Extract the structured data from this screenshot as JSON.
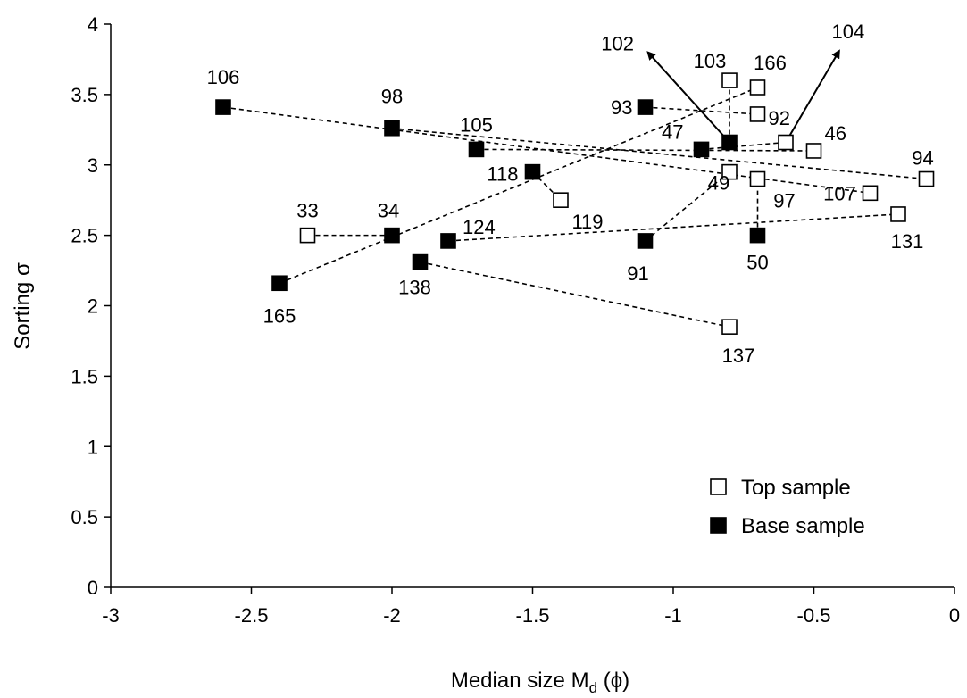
{
  "chart_data": {
    "type": "scatter",
    "xlabel": "Median size M",
    "xlabel_sub": "d",
    "xlabel_unit": "(ϕ)",
    "ylabel": "Sorting σ",
    "xlim": [
      -3,
      0
    ],
    "ylim": [
      0,
      4
    ],
    "xticks": [
      -3,
      -2.5,
      -2,
      -1.5,
      -1,
      -0.5,
      0
    ],
    "xtick_labels": [
      "-3",
      "-2.5",
      "-2",
      "-1.5",
      "-1",
      "-0.5",
      "0"
    ],
    "yticks": [
      0,
      0.5,
      1,
      1.5,
      2,
      2.5,
      3,
      3.5,
      4
    ],
    "ytick_labels": [
      "0",
      "0.5",
      "1",
      "1.5",
      "2",
      "2.5",
      "3",
      "3.5",
      "4"
    ],
    "grid": false,
    "legend_position": "bottom-right",
    "series": [
      {
        "name": "Top sample",
        "marker": "open-square",
        "points": [
          {
            "label": "33",
            "x": -2.3,
            "y": 2.5
          },
          {
            "label": "119",
            "x": -1.4,
            "y": 2.75
          },
          {
            "label": "103",
            "x": -0.8,
            "y": 3.6
          },
          {
            "label": "166",
            "x": -0.7,
            "y": 3.55
          },
          {
            "label": "92",
            "x": -0.7,
            "y": 3.36
          },
          {
            "label": "46",
            "x": -0.5,
            "y": 3.1
          },
          {
            "label": "104",
            "x": -0.6,
            "y": 3.16
          },
          {
            "label": "49",
            "x": -0.8,
            "y": 2.95
          },
          {
            "label": "97",
            "x": -0.7,
            "y": 2.9
          },
          {
            "label": "107",
            "x": -0.3,
            "y": 2.8
          },
          {
            "label": "94",
            "x": -0.1,
            "y": 2.9
          },
          {
            "label": "131",
            "x": -0.2,
            "y": 2.65
          },
          {
            "label": "137",
            "x": -0.8,
            "y": 1.85
          }
        ]
      },
      {
        "name": "Base sample",
        "marker": "filled-square",
        "points": [
          {
            "label": "106",
            "x": -2.6,
            "y": 3.41
          },
          {
            "label": "98",
            "x": -2.0,
            "y": 3.26
          },
          {
            "label": "105",
            "x": -1.7,
            "y": 3.11
          },
          {
            "label": "118",
            "x": -1.5,
            "y": 2.95
          },
          {
            "label": "34",
            "x": -2.0,
            "y": 2.5
          },
          {
            "label": "124",
            "x": -1.8,
            "y": 2.46
          },
          {
            "label": "165",
            "x": -2.4,
            "y": 2.16
          },
          {
            "label": "138",
            "x": -1.9,
            "y": 2.31
          },
          {
            "label": "93",
            "x": -1.1,
            "y": 3.41
          },
          {
            "label": "47",
            "x": -0.9,
            "y": 3.11
          },
          {
            "label": "102",
            "x": -0.8,
            "y": 3.16
          },
          {
            "label": "91",
            "x": -1.1,
            "y": 2.46
          },
          {
            "label": "50",
            "x": -0.7,
            "y": 2.5
          }
        ]
      }
    ],
    "connections": [
      [
        "106",
        "107"
      ],
      [
        "98",
        "94"
      ],
      [
        "105",
        "46"
      ],
      [
        "118",
        "119"
      ],
      [
        "33",
        "34"
      ],
      [
        "124",
        "131"
      ],
      [
        "165",
        "166"
      ],
      [
        "138",
        "137"
      ],
      [
        "93",
        "92"
      ],
      [
        "47",
        "104"
      ],
      [
        "102",
        "103"
      ],
      [
        "91",
        "49"
      ],
      [
        "50",
        "97"
      ]
    ],
    "arrows": [
      {
        "from": "102",
        "to_label": "102",
        "tip": {
          "x": -1.09,
          "y": 3.8
        }
      },
      {
        "from": "104",
        "to_label": "104",
        "tip": {
          "x": -0.41,
          "y": 3.81
        }
      }
    ]
  }
}
